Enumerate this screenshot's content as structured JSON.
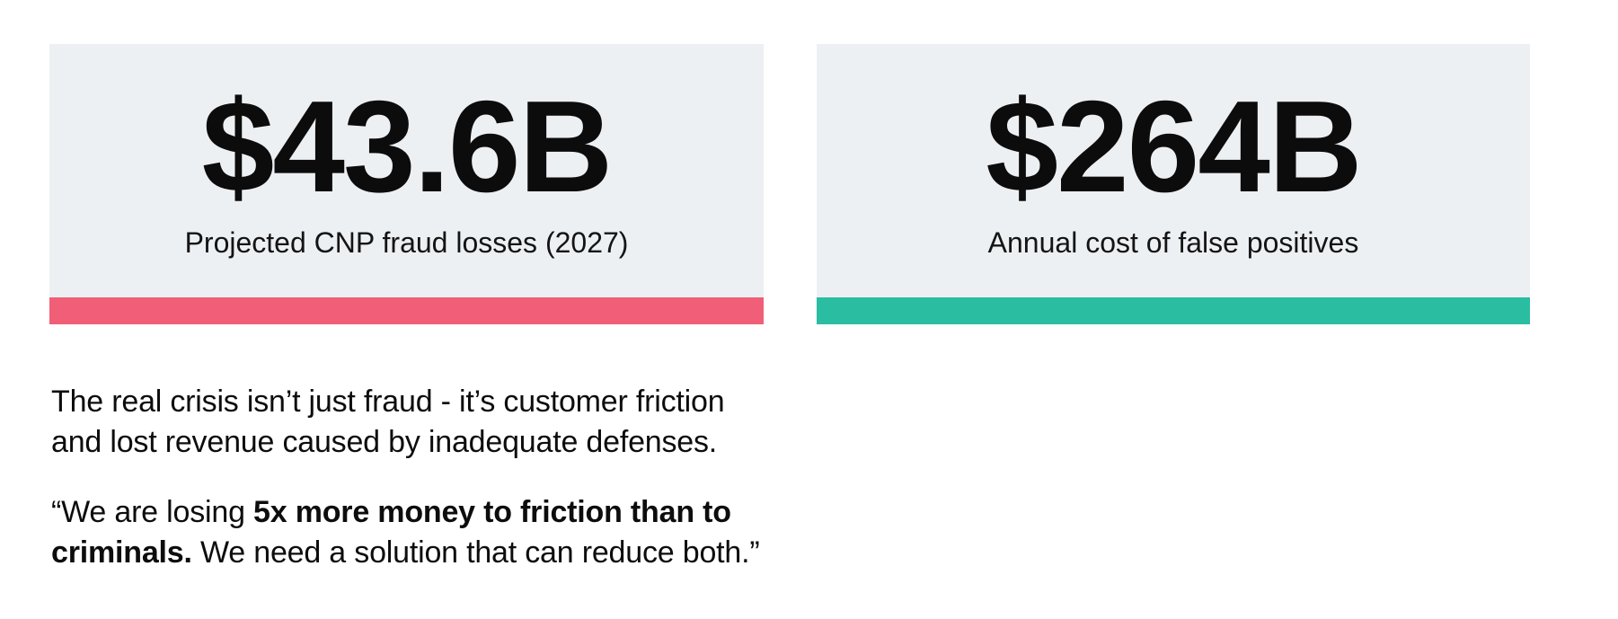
{
  "page": {
    "background_color": "#ffffff",
    "card_background_color": "#edf0f3",
    "text_color": "#0d0d0d"
  },
  "stats": {
    "card_background": "#edf0f3",
    "cards": [
      {
        "value": "$43.6B",
        "label": "Projected CNP fraud losses (2027)",
        "accent_color": "#f05e78"
      },
      {
        "value": "$264B",
        "label": "Annual cost of false positives",
        "accent_color": "#2abda2"
      }
    ]
  },
  "body": {
    "intro": {
      "line1": "The real crisis isn’t just fraud - it’s customer friction",
      "line2": "and lost revenue caused by inadequate defenses."
    },
    "quote": {
      "line1_normal": "“We are losing ",
      "line1_bold": "5x more money to friction than to",
      "line2_bold": "criminals.",
      "line2_normal": " We need a solution that can reduce both.”"
    }
  }
}
